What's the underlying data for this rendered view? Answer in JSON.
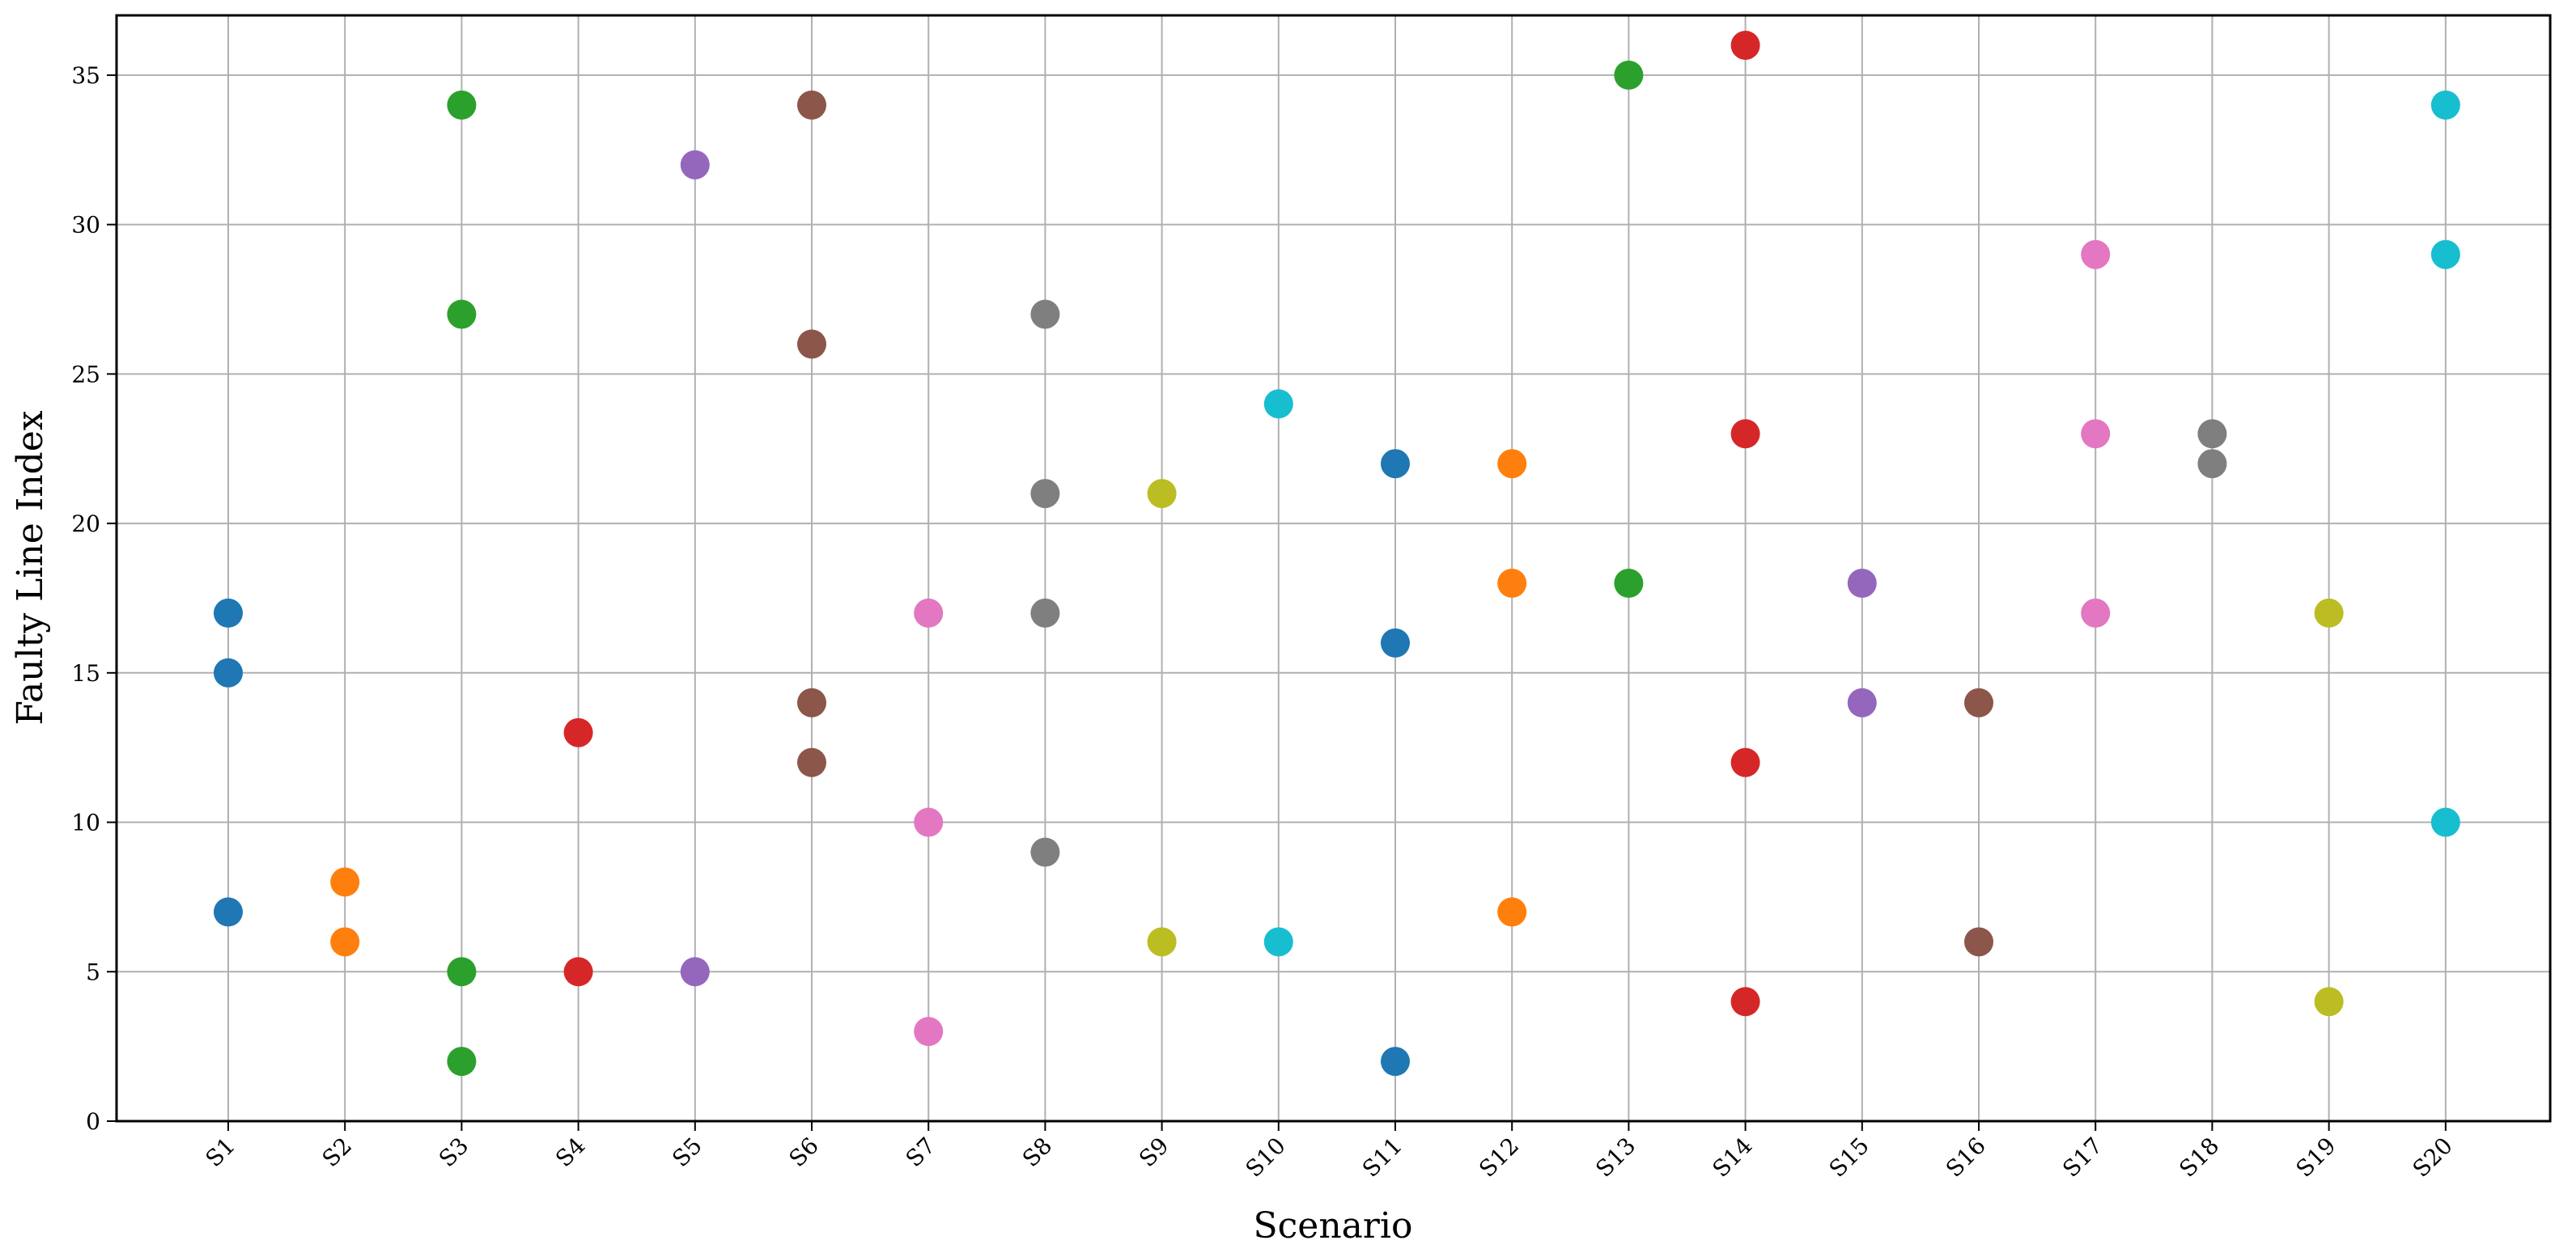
{
  "chart_data": {
    "type": "scatter",
    "title": "",
    "xlabel": "Scenario",
    "ylabel": "Faulty Line Index",
    "categories": [
      "S1",
      "S2",
      "S3",
      "S4",
      "S5",
      "S6",
      "S7",
      "S8",
      "S9",
      "S10",
      "S11",
      "S12",
      "S13",
      "S14",
      "S15",
      "S16",
      "S17",
      "S18",
      "S19",
      "S20"
    ],
    "ylim": [
      0,
      37
    ],
    "yticks": [
      0,
      5,
      10,
      15,
      20,
      25,
      30,
      35
    ],
    "grid": true,
    "legend": "none",
    "series": [
      {
        "category": "S1",
        "color": "#1f77b4",
        "values": [
          7,
          15,
          17
        ]
      },
      {
        "category": "S2",
        "color": "#ff7f0e",
        "values": [
          6,
          8
        ]
      },
      {
        "category": "S3",
        "color": "#2ca02c",
        "values": [
          2,
          5,
          27,
          34
        ]
      },
      {
        "category": "S4",
        "color": "#d62728",
        "values": [
          5,
          13
        ]
      },
      {
        "category": "S5",
        "color": "#9467bd",
        "values": [
          5,
          32
        ]
      },
      {
        "category": "S6",
        "color": "#8c564b",
        "values": [
          12,
          14,
          26,
          34
        ]
      },
      {
        "category": "S7",
        "color": "#e377c2",
        "values": [
          3,
          10,
          17
        ]
      },
      {
        "category": "S8",
        "color": "#7f7f7f",
        "values": [
          9,
          17,
          21,
          27
        ]
      },
      {
        "category": "S9",
        "color": "#bcbd22",
        "values": [
          6,
          21
        ]
      },
      {
        "category": "S10",
        "color": "#17becf",
        "values": [
          6,
          24
        ]
      },
      {
        "category": "S11",
        "color": "#1f77b4",
        "values": [
          2,
          16,
          22
        ]
      },
      {
        "category": "S12",
        "color": "#ff7f0e",
        "values": [
          7,
          18,
          22
        ]
      },
      {
        "category": "S13",
        "color": "#2ca02c",
        "values": [
          18,
          35
        ]
      },
      {
        "category": "S14",
        "color": "#d62728",
        "values": [
          4,
          12,
          23,
          36
        ]
      },
      {
        "category": "S15",
        "color": "#9467bd",
        "values": [
          14,
          18
        ]
      },
      {
        "category": "S16",
        "color": "#8c564b",
        "values": [
          6,
          14
        ]
      },
      {
        "category": "S17",
        "color": "#e377c2",
        "values": [
          17,
          23,
          29
        ]
      },
      {
        "category": "S18",
        "color": "#7f7f7f",
        "values": [
          22,
          23
        ]
      },
      {
        "category": "S19",
        "color": "#bcbd22",
        "values": [
          4,
          17
        ]
      },
      {
        "category": "S20",
        "color": "#17becf",
        "values": [
          10,
          29,
          34
        ]
      }
    ]
  }
}
